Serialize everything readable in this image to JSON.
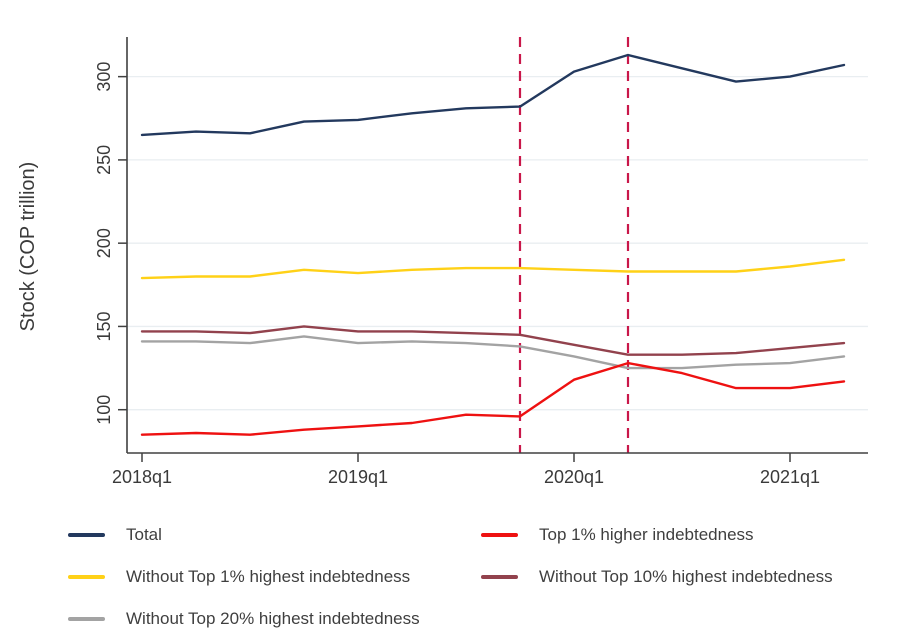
{
  "chart_data": {
    "type": "line",
    "title": "",
    "xlabel": "",
    "ylabel": "Stock (COP trillion)",
    "categories": [
      "2018q1",
      "2018q2",
      "2018q3",
      "2018q4",
      "2019q1",
      "2019q2",
      "2019q3",
      "2019q4",
      "2020q1",
      "2020q2",
      "2020q3",
      "2020q4",
      "2021q1",
      "2021q2"
    ],
    "x_tick_labels": [
      "2018q1",
      "2019q1",
      "2020q1",
      "2021q1"
    ],
    "x_tick_indices": [
      0,
      4,
      8,
      12
    ],
    "y_ticks": [
      100,
      150,
      200,
      250,
      300
    ],
    "ylim": [
      74,
      322
    ],
    "grid": "horizontal",
    "legend_position": "bottom, two columns",
    "background_color": "#ffffff",
    "gridline_color": "#e9eef1",
    "axis_color": "#404040",
    "text_color": "#3a3a3a",
    "vline_color": "#c9174a",
    "vlines": [
      {
        "at": "2019q4",
        "index": 7,
        "style": "dashed"
      },
      {
        "at": "2020q2",
        "index": 9,
        "style": "dashed"
      }
    ],
    "series": [
      {
        "name": "Total",
        "color": "#23395e",
        "values": [
          265,
          267,
          266,
          273,
          274,
          278,
          281,
          282,
          303,
          313,
          305,
          297,
          300,
          307
        ]
      },
      {
        "name": "Top 1% higher indebtedness",
        "color": "#ee1111",
        "values": [
          85,
          86,
          85,
          88,
          90,
          92,
          97,
          96,
          118,
          128,
          122,
          113,
          113,
          117
        ]
      },
      {
        "name": "Without Top 1% highest indebtedness",
        "color": "#ffd117",
        "values": [
          179,
          180,
          180,
          184,
          182,
          184,
          185,
          185,
          184,
          183,
          183,
          183,
          186,
          190
        ]
      },
      {
        "name": "Without Top 10% highest indebtedness",
        "color": "#92424d",
        "values": [
          147,
          147,
          146,
          150,
          147,
          147,
          146,
          145,
          139,
          133,
          133,
          134,
          137,
          140
        ]
      },
      {
        "name": "Without Top 20% highest indebtedness",
        "color": "#a3a3a3",
        "values": [
          141,
          141,
          140,
          144,
          140,
          141,
          140,
          138,
          132,
          125,
          125,
          127,
          128,
          132
        ]
      }
    ]
  },
  "legend": {
    "columns": [
      {
        "items": [
          {
            "series": 0
          },
          {
            "series": 2
          },
          {
            "series": 4
          }
        ]
      },
      {
        "items": [
          {
            "series": 1
          },
          {
            "series": 3
          }
        ]
      }
    ]
  }
}
